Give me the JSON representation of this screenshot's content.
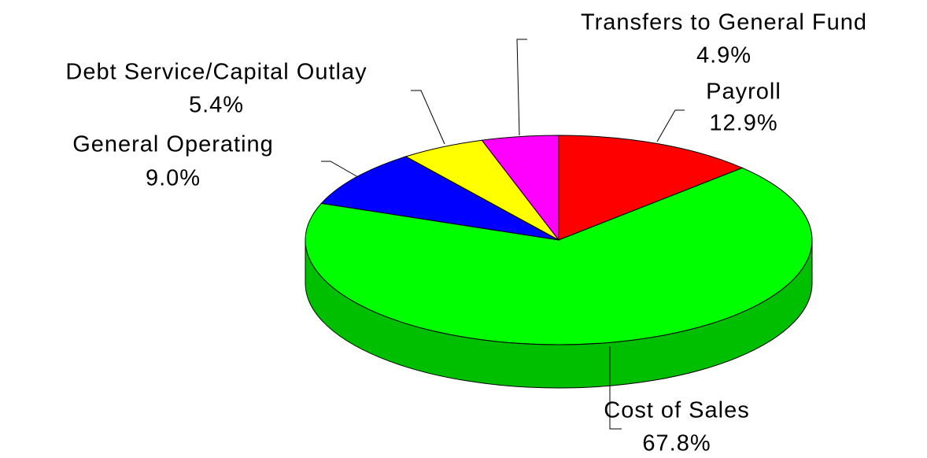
{
  "chart_data": {
    "type": "pie",
    "categories": [
      "Payroll",
      "Cost of Sales",
      "General Operating",
      "Debt Service/Capital Outlay",
      "Transfers to General Fund"
    ],
    "values": [
      12.9,
      67.8,
      9.0,
      5.4,
      4.9
    ],
    "value_labels": [
      "12.9%",
      "67.8%",
      "9.0%",
      "5.4%",
      "4.9%"
    ],
    "colors": [
      "#ff0000",
      "#00ff00",
      "#0000ff",
      "#ffff00",
      "#ff00ff"
    ]
  }
}
